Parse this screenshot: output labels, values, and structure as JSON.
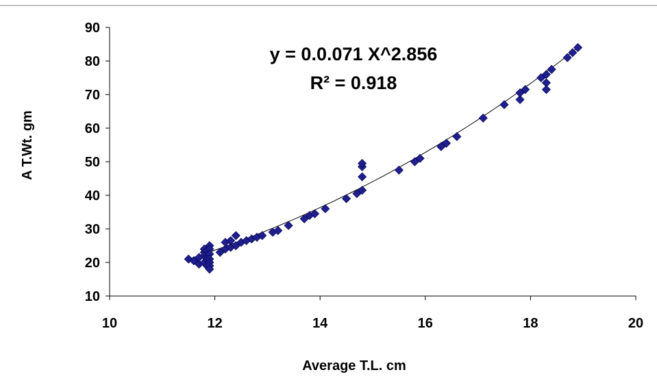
{
  "chart_data": {
    "type": "scatter",
    "title": "",
    "xlabel": "Average T.L. cm",
    "ylabel": "A T.Wt. gm",
    "xlim": [
      10,
      20
    ],
    "ylim": [
      10,
      90
    ],
    "xticks": [
      "10",
      "12",
      "14",
      "16",
      "18",
      "20"
    ],
    "yticks": [
      "10",
      "20",
      "30",
      "40",
      "50",
      "60",
      "70",
      "80",
      "90"
    ],
    "grid": false,
    "legend": "none",
    "marker_color": "#1f1f8f",
    "trendline": {
      "type": "power",
      "a": 0.071,
      "b": 2.856,
      "x_range": [
        11.5,
        18.9
      ]
    },
    "annotations": [
      "y = 0.0.071 X^2.856",
      "R² = 0.918"
    ],
    "series": [
      {
        "x": [
          11.5,
          11.6,
          11.7,
          11.7,
          11.8,
          11.8,
          11.8,
          11.8,
          11.85,
          11.85,
          11.85,
          11.9,
          11.9,
          11.9,
          11.9,
          11.9,
          11.9,
          11.9,
          12.1,
          12.2,
          12.2,
          12.3,
          12.3,
          12.4,
          12.4,
          12.5,
          12.6,
          12.7,
          12.8,
          12.9,
          13.1,
          13.2,
          13.4,
          13.7,
          13.8,
          13.9,
          14.1,
          14.5,
          14.7,
          14.8,
          14.8,
          14.8,
          14.8,
          15.5,
          15.8,
          15.9,
          16.3,
          16.4,
          16.6,
          17.1,
          17.5,
          17.8,
          17.8,
          17.9,
          18.2,
          18.3,
          18.3,
          18.3,
          18.4,
          18.7,
          18.8,
          18.9
        ],
        "y": [
          21,
          20.5,
          19.5,
          21.5,
          20,
          22,
          23,
          24,
          21,
          23.5,
          19,
          25,
          24,
          22.5,
          21,
          20,
          19,
          18,
          23,
          24,
          26,
          24.5,
          26.5,
          25,
          28,
          26,
          26.5,
          27,
          27.5,
          28,
          29,
          29.5,
          31,
          33,
          34,
          34.5,
          36,
          39,
          40.5,
          41.5,
          45.5,
          48.5,
          49.5,
          47.5,
          50,
          51,
          54.5,
          55.5,
          57.5,
          63,
          67,
          68.5,
          70.5,
          71.5,
          75,
          76,
          73.5,
          71.5,
          77.5,
          81,
          82.5,
          84
        ]
      }
    ]
  }
}
